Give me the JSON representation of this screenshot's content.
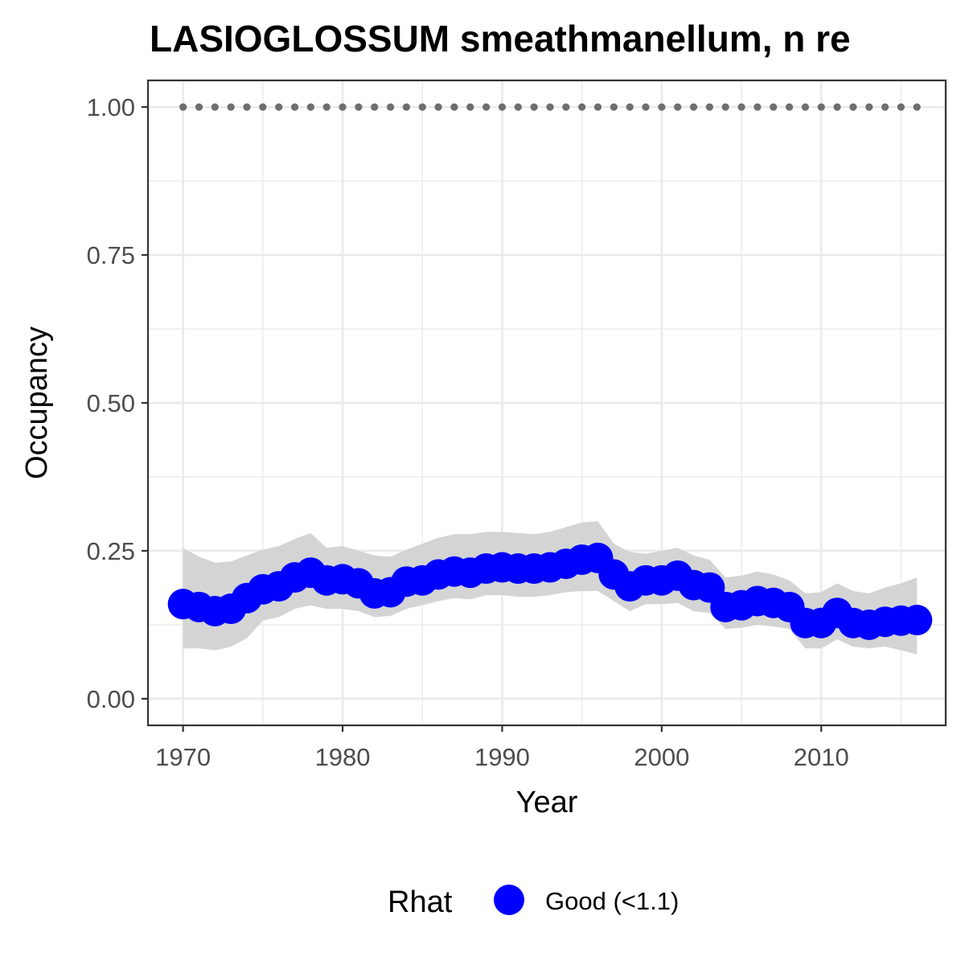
{
  "chart_data": {
    "type": "line",
    "title": "LASIOGLOSSUM smeathmanellum, n re",
    "xlabel": "Year",
    "ylabel": "Occupancy",
    "xlim": [
      1967.8,
      2017.8
    ],
    "ylim": [
      -0.045,
      1.045
    ],
    "x_ticks": [
      1970,
      1980,
      1990,
      2000,
      2010
    ],
    "x_tick_labels": [
      "1970",
      "1980",
      "1990",
      "2000",
      "2010"
    ],
    "y_ticks": [
      0,
      0.25,
      0.5,
      0.75,
      1.0
    ],
    "y_tick_labels": [
      "0.00",
      "0.25",
      "0.50",
      "0.75",
      "1.00"
    ],
    "grid": true,
    "legend": {
      "position": "bottom",
      "title": "Rhat",
      "entries": [
        {
          "label": "Good (<1.1)",
          "color": "#0000ff"
        }
      ]
    },
    "colors": {
      "points": "#0000ff",
      "band": "#d4d4d4",
      "reference": "#6e6e6e"
    },
    "series": [
      {
        "x": [
          1970,
          1971,
          1972,
          1973,
          1974,
          1975,
          1976,
          1977,
          1978,
          1979,
          1980,
          1981,
          1982,
          1983,
          1984,
          1985,
          1986,
          1987,
          1988,
          1989,
          1990,
          1991,
          1992,
          1993,
          1994,
          1995,
          1996,
          1997,
          1998,
          1999,
          2000,
          2001,
          2002,
          2003,
          2004,
          2005,
          2006,
          2007,
          2008,
          2009,
          2010,
          2011,
          2012,
          2013,
          2014,
          2015,
          2016
        ],
        "values": [
          0.16,
          0.155,
          0.148,
          0.152,
          0.17,
          0.185,
          0.19,
          0.205,
          0.213,
          0.2,
          0.202,
          0.195,
          0.178,
          0.18,
          0.198,
          0.2,
          0.21,
          0.215,
          0.213,
          0.22,
          0.222,
          0.22,
          0.22,
          0.222,
          0.228,
          0.235,
          0.238,
          0.21,
          0.19,
          0.2,
          0.2,
          0.208,
          0.192,
          0.188,
          0.155,
          0.158,
          0.165,
          0.162,
          0.155,
          0.128,
          0.128,
          0.145,
          0.128,
          0.125,
          0.13,
          0.132,
          0.133
        ],
        "lower": [
          0.085,
          0.085,
          0.082,
          0.088,
          0.102,
          0.132,
          0.138,
          0.152,
          0.158,
          0.152,
          0.152,
          0.148,
          0.138,
          0.14,
          0.152,
          0.158,
          0.165,
          0.17,
          0.168,
          0.175,
          0.175,
          0.172,
          0.172,
          0.175,
          0.18,
          0.182,
          0.182,
          0.165,
          0.148,
          0.16,
          0.16,
          0.162,
          0.148,
          0.145,
          0.118,
          0.12,
          0.125,
          0.122,
          0.118,
          0.085,
          0.085,
          0.1,
          0.088,
          0.085,
          0.088,
          0.082,
          0.075
        ],
        "upper": [
          0.255,
          0.24,
          0.23,
          0.232,
          0.242,
          0.252,
          0.258,
          0.27,
          0.28,
          0.255,
          0.258,
          0.25,
          0.242,
          0.24,
          0.252,
          0.262,
          0.272,
          0.278,
          0.278,
          0.282,
          0.282,
          0.28,
          0.278,
          0.282,
          0.29,
          0.298,
          0.3,
          0.262,
          0.248,
          0.245,
          0.25,
          0.255,
          0.242,
          0.235,
          0.205,
          0.208,
          0.215,
          0.21,
          0.2,
          0.178,
          0.18,
          0.195,
          0.182,
          0.178,
          0.188,
          0.195,
          0.205
        ]
      },
      {
        "x": [
          1970,
          1971,
          1972,
          1973,
          1974,
          1975,
          1976,
          1977,
          1978,
          1979,
          1980,
          1981,
          1982,
          1983,
          1984,
          1985,
          1986,
          1987,
          1988,
          1989,
          1990,
          1991,
          1992,
          1993,
          1994,
          1995,
          1996,
          1997,
          1998,
          1999,
          2000,
          2001,
          2002,
          2003,
          2004,
          2005,
          2006,
          2007,
          2008,
          2009,
          2010,
          2011,
          2012,
          2013,
          2014,
          2015,
          2016
        ],
        "values": [
          1,
          1,
          1,
          1,
          1,
          1,
          1,
          1,
          1,
          1,
          1,
          1,
          1,
          1,
          1,
          1,
          1,
          1,
          1,
          1,
          1,
          1,
          1,
          1,
          1,
          1,
          1,
          1,
          1,
          1,
          1,
          1,
          1,
          1,
          1,
          1,
          1,
          1,
          1,
          1,
          1,
          1,
          1,
          1,
          1,
          1,
          1
        ]
      }
    ]
  }
}
